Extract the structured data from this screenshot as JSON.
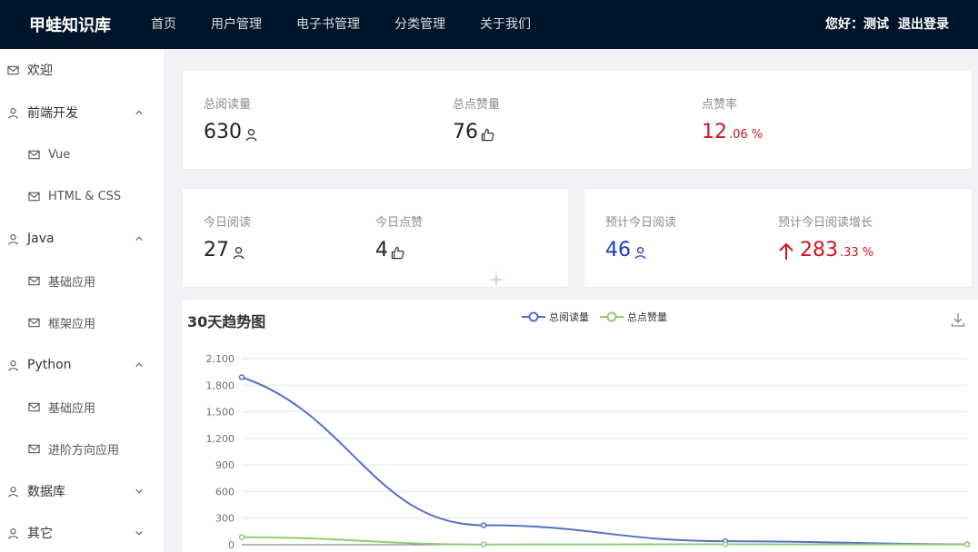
{
  "header": {
    "logo": "甲蛙知识库",
    "nav": [
      "首页",
      "用户管理",
      "电子书管理",
      "分类管理",
      "关于我们"
    ],
    "greeting": "您好：测试",
    "logout": "退出登录"
  },
  "sidebar": {
    "items": [
      {
        "label": "欢迎",
        "icon": "mail-icon",
        "level": 0
      },
      {
        "label": "前端开发",
        "icon": "user-icon",
        "level": 0,
        "arrow": "up"
      },
      {
        "label": "Vue",
        "icon": "mail-icon",
        "level": 1
      },
      {
        "label": "HTML & CSS",
        "icon": "mail-icon",
        "level": 1
      },
      {
        "label": "Java",
        "icon": "user-icon",
        "level": 0,
        "arrow": "up"
      },
      {
        "label": "基础应用",
        "icon": "mail-icon",
        "level": 1
      },
      {
        "label": "框架应用",
        "icon": "mail-icon",
        "level": 1
      },
      {
        "label": "Python",
        "icon": "user-icon",
        "level": 0,
        "arrow": "up"
      },
      {
        "label": "基础应用",
        "icon": "mail-icon",
        "level": 1
      },
      {
        "label": "进阶方向应用",
        "icon": "mail-icon",
        "level": 1
      },
      {
        "label": "数据库",
        "icon": "user-icon",
        "level": 0,
        "arrow": "down"
      },
      {
        "label": "其它",
        "icon": "user-icon",
        "level": 0,
        "arrow": "down"
      }
    ]
  },
  "stats_total": {
    "total_views_label": "总阅读量",
    "total_views_value": "630",
    "total_likes_label": "总点赞量",
    "total_likes_value": "76",
    "like_rate_label": "点赞率",
    "like_rate_int": "12",
    "like_rate_dec": ".06 %"
  },
  "stats_today": {
    "views_label": "今日阅读",
    "views_value": "27",
    "likes_label": "今日点赞",
    "likes_value": "4"
  },
  "stats_forecast": {
    "views_label": "预计今日阅读",
    "views_value": "46",
    "growth_label": "预计今日阅读增长",
    "growth_int": "283",
    "growth_dec": ".33 %"
  },
  "colors": {
    "header_bg": "#001529",
    "red": "#cf1322",
    "blue": "#1d39c4",
    "series_views": "#5470c6",
    "series_likes": "#91cc75"
  },
  "chart_data": {
    "type": "line",
    "title": "30天趋势图",
    "series": [
      {
        "name": "总阅读量",
        "values": [
          1890,
          220,
          40,
          5
        ]
      },
      {
        "name": "总点赞量",
        "values": [
          85,
          3,
          5,
          2
        ]
      }
    ],
    "ylim": [
      0,
      2100
    ],
    "yticks": [
      "0",
      "300",
      "600",
      "900",
      "1,200",
      "1,500",
      "1,800",
      "2,100"
    ],
    "legend": "top-center",
    "grid": true
  }
}
